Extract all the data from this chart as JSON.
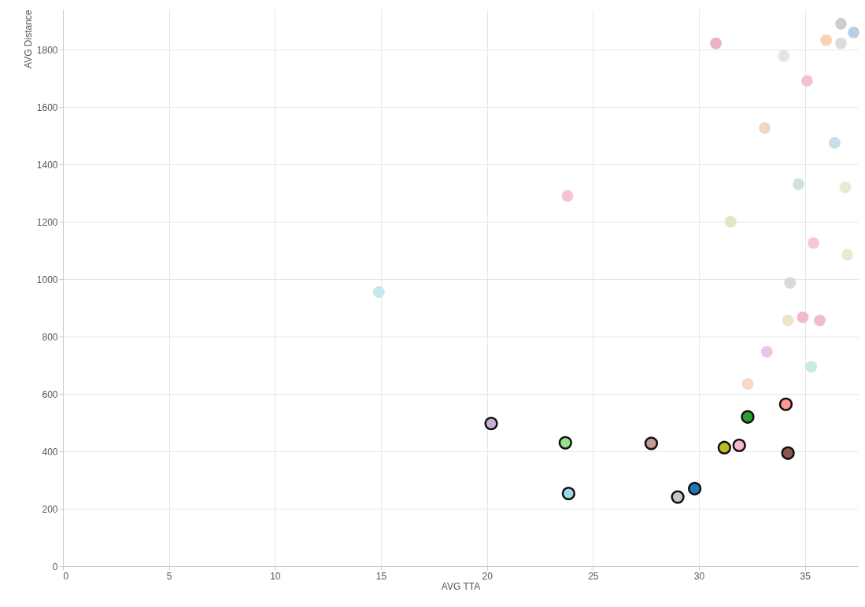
{
  "chart_data": {
    "type": "scatter",
    "xlabel": "AVG TTA",
    "ylabel": "AVG Distance",
    "xlim": [
      0,
      37.5
    ],
    "ylim": [
      0,
      1940
    ],
    "xticks": [
      0,
      5,
      10,
      15,
      20,
      25,
      30,
      35
    ],
    "yticks": [
      0,
      200,
      400,
      600,
      800,
      1000,
      1200,
      1400,
      1600,
      1800
    ],
    "grid": true,
    "marker": "circle",
    "series": [
      {
        "x": [
          30.8,
          36.7,
          37.3,
          36.0,
          36.7,
          34.0,
          35.1,
          33.1,
          36.4,
          34.7,
          36.9,
          23.8,
          31.5,
          35.4,
          37.0,
          34.3,
          14.9,
          34.2,
          34.9,
          35.7,
          33.2,
          35.3,
          32.3
        ],
        "values": [
          1822,
          1890,
          1860,
          1833,
          1822,
          1778,
          1691,
          1527,
          1475,
          1331,
          1320,
          1290,
          1200,
          1126,
          1085,
          987,
          955,
          856,
          867,
          856,
          747,
          695,
          635
        ],
        "colors": [
          "#eab3bf",
          "#d0cccc",
          "#b9cfe3",
          "#f6d3b5",
          "#dcdde0",
          "#e3e3ea",
          "#f0c2d4",
          "#f5d7c0",
          "#c5e0e6",
          "#cfe3d6",
          "#e6ecd2",
          "#f3c4d2",
          "#e0e8c3",
          "#f6c8d6",
          "#e6ead2",
          "#d7dadb",
          "#c3e8ee",
          "#efe3c8",
          "#f2b9c6",
          "#f1bdc8",
          "#efc3e3",
          "#c6ece0",
          "#f8d9c7"
        ]
      },
      {
        "x": [
          20.2,
          23.7,
          27.75,
          31.2,
          31.9,
          32.3,
          34.1,
          34.2,
          23.85,
          29.0,
          29.8
        ],
        "values": [
          497,
          430,
          428,
          413,
          421,
          520,
          564,
          394,
          253,
          241,
          270
        ],
        "colors": [
          "#c5b0d5",
          "#98df8a",
          "#c49c94",
          "#bcbd22",
          "#f7b6d2",
          "#2ca02c",
          "#ff9896",
          "#8c564b",
          "#9edae5",
          "#c7c7c7",
          "#1f77b4"
        ]
      }
    ]
  }
}
